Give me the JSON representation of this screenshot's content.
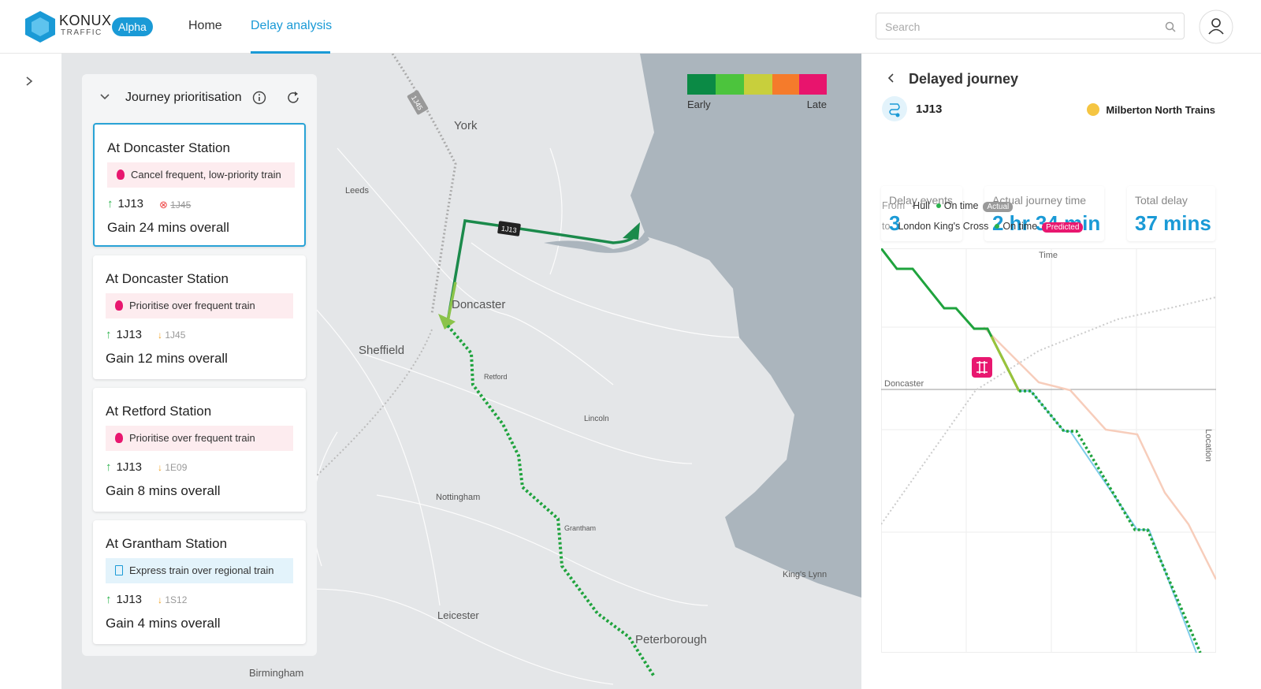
{
  "header": {
    "logo": "KONUX",
    "logo_sub": "TRAFFIC",
    "badge": "Alpha",
    "nav": [
      "Home",
      "Delay analysis"
    ],
    "search_placeholder": "Search"
  },
  "panel": {
    "title": "Journey prioritisation",
    "cards": [
      {
        "station": "At Doncaster Station",
        "action": "Cancel frequent, low-priority train",
        "train": "1J13",
        "other_train": "1J45",
        "gain": "Gain 24 mins overall"
      },
      {
        "station": "At Doncaster Station",
        "action": "Prioritise over frequent train",
        "train": "1J13",
        "other_train": "1J45",
        "gain": "Gain 12 mins overall"
      },
      {
        "station": "At Retford Station",
        "action": "Prioritise over frequent train",
        "train": "1J13",
        "other_train": "1E09",
        "gain": "Gain 8 mins overall"
      },
      {
        "station": "At Grantham Station",
        "action": "Express train over regional train",
        "train": "1J13",
        "other_train": "1S12",
        "gain": "Gain 4 mins overall"
      }
    ]
  },
  "map": {
    "legend": [
      "Early",
      "Late"
    ],
    "places": [
      "York",
      "Leeds",
      "Doncaster",
      "Sheffield",
      "Retford",
      "Lincoln",
      "Nottingham",
      "Grantham",
      "Leicester",
      "Peterborough",
      "Birmingham",
      "King's Lynn"
    ],
    "train_tags": [
      "1J45",
      "1J13"
    ]
  },
  "journey": {
    "title": "Delayed journey",
    "train": "1J13",
    "operator": "Milberton North Trains",
    "stats": [
      {
        "label": "Delay events",
        "value": "3"
      },
      {
        "label": "Actual journey time",
        "value": "2 hr 34 min"
      },
      {
        "label": "Total delay",
        "value": "37 mins"
      }
    ],
    "from_label": "From",
    "from": "Hull",
    "from_status": "On time",
    "from_badge": "Actual",
    "to_label": "to",
    "to": "London King's Cross",
    "to_status": "On time",
    "to_badge": "Predicted",
    "chart": {
      "x_label": "Time",
      "marker": "Doncaster",
      "y_label": "Location"
    }
  }
}
